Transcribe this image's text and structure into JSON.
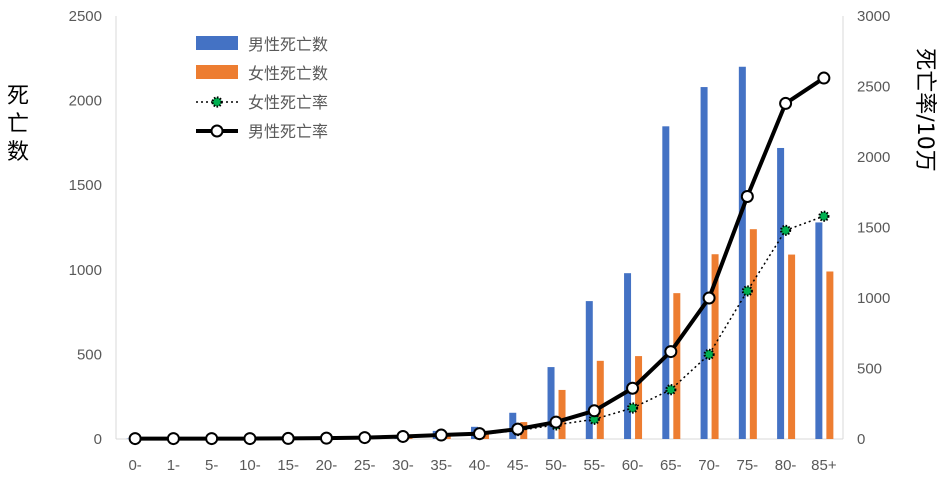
{
  "chart_data": {
    "type": "bar",
    "categories": [
      "0-",
      "1-",
      "5-",
      "10-",
      "15-",
      "20-",
      "25-",
      "30-",
      "35-",
      "40-",
      "45-",
      "50-",
      "55-",
      "60-",
      "65-",
      "70-",
      "75-",
      "80-",
      "85+"
    ],
    "ylabel_left": "死亡数",
    "ylabel_right": "死亡率/10万",
    "ylim_left": [
      0,
      2500
    ],
    "ylim_right": [
      0,
      3000
    ],
    "yticks_left": [
      0,
      500,
      1000,
      1500,
      2000,
      2500
    ],
    "yticks_right": [
      0,
      500,
      1000,
      1500,
      2000,
      2500,
      3000
    ],
    "grid": false,
    "legend_position": "top-left",
    "series": [
      {
        "name": "男性死亡数",
        "kind": "bar",
        "axis": "left",
        "color": "#4472C4",
        "values": [
          2,
          2,
          2,
          2,
          4,
          5,
          8,
          18,
          48,
          72,
          155,
          425,
          815,
          980,
          1848,
          2080,
          2200,
          1720,
          1280
        ]
      },
      {
        "name": "女性死亡数",
        "kind": "bar",
        "axis": "left",
        "color": "#ED7D31",
        "values": [
          2,
          2,
          2,
          2,
          3,
          4,
          6,
          12,
          28,
          45,
          100,
          290,
          462,
          490,
          862,
          1092,
          1240,
          1090,
          990
        ]
      },
      {
        "name": "女性死亡率",
        "kind": "line",
        "axis": "right",
        "color": "#000000",
        "marker_fill": "#00B050",
        "dashed": true,
        "values": [
          3,
          3,
          3,
          3,
          4,
          5,
          8,
          15,
          25,
          32,
          60,
          100,
          140,
          220,
          350,
          600,
          1050,
          1480,
          1580
        ]
      },
      {
        "name": "男性死亡率",
        "kind": "line",
        "axis": "right",
        "color": "#000000",
        "marker_fill": "#ffffff",
        "dashed": false,
        "values": [
          3,
          3,
          3,
          3,
          4,
          6,
          10,
          18,
          28,
          38,
          70,
          120,
          200,
          360,
          620,
          1000,
          1720,
          2380,
          2560
        ]
      }
    ]
  }
}
